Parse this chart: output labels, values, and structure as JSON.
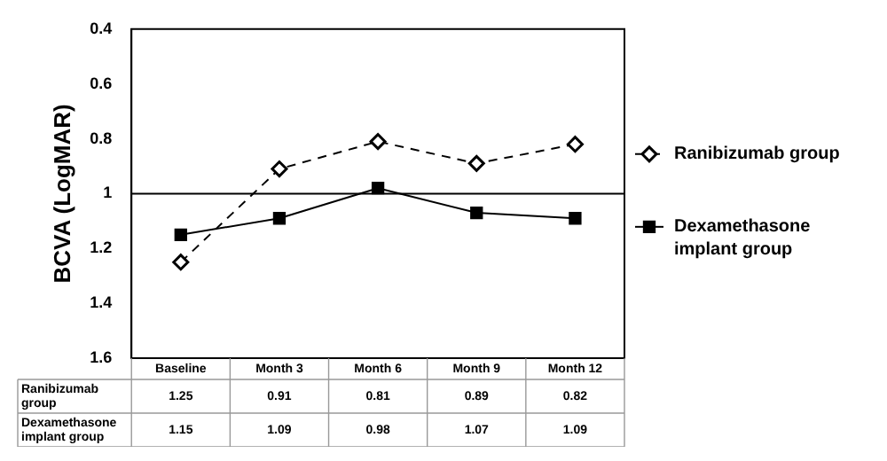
{
  "chart_data": {
    "type": "line",
    "ylabel": "BCVA (LogMAR)",
    "categories": [
      "Baseline",
      "Month 3",
      "Month 6",
      "Month 9",
      "Month 12"
    ],
    "series": [
      {
        "name": "Ranibizumab group",
        "color": "#000000",
        "values": [
          1.25,
          0.91,
          0.81,
          0.89,
          0.82
        ],
        "marker": "diamond",
        "line_style": "dashed"
      },
      {
        "name": "Dexamethasone implant group",
        "color": "#000000",
        "values": [
          1.15,
          1.09,
          0.98,
          1.07,
          1.09
        ],
        "marker": "square",
        "line_style": "solid"
      }
    ],
    "ylim": [
      1.6,
      0.4
    ],
    "yticks": [
      0.4,
      0.6,
      0.8,
      1,
      1.2,
      1.4,
      1.6
    ],
    "grid": false,
    "legend": "right",
    "data_labels": true,
    "ref_lines": [
      {
        "axis": "y",
        "value": 1,
        "color": "#000000"
      }
    ]
  }
}
